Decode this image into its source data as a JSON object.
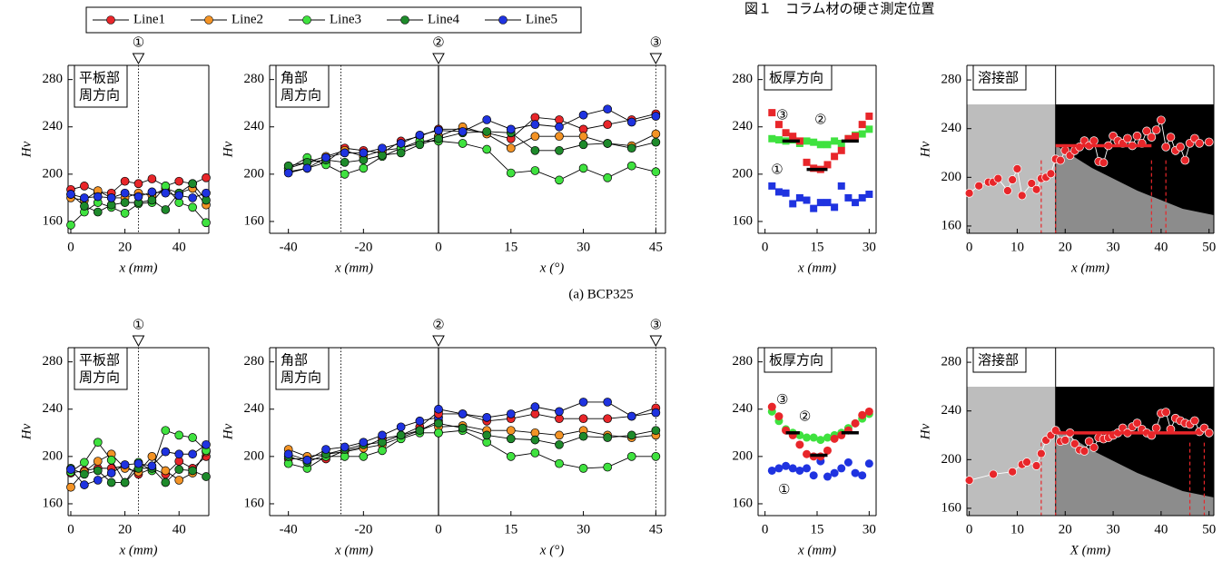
{
  "title": "図１　コラム材の硬さ測定位置",
  "caption": "(a) BCP325",
  "chart_data": [
    {
      "type": "line",
      "x": [
        0,
        5,
        10,
        15,
        20,
        25,
        30,
        35,
        40,
        45,
        50
      ],
      "xlim": [
        -1,
        51
      ],
      "ylim": [
        150,
        292
      ],
      "xticks": [
        0,
        20,
        40
      ],
      "yticks": [
        160,
        200,
        240,
        280
      ],
      "x_label": "x (mm)",
      "y_label": "Hv",
      "annotation": [
        "平板部",
        "周方向"
      ],
      "vlines": [
        {
          "value": 25,
          "label": "①",
          "style": "dotted"
        }
      ],
      "series": [
        {
          "name": "Line1",
          "color": "#e8262a",
          "values": [
            187,
            190,
            185,
            184,
            194,
            192,
            196,
            190,
            194,
            192,
            197
          ]
        },
        {
          "name": "Line2",
          "color": "#f39325",
          "values": [
            180,
            178,
            186,
            180,
            180,
            184,
            182,
            188,
            184,
            188,
            174
          ]
        },
        {
          "name": "Line3",
          "color": "#3fe23f",
          "values": [
            157,
            168,
            176,
            172,
            167,
            175,
            176,
            190,
            176,
            172,
            159
          ]
        },
        {
          "name": "Line4",
          "color": "#1e8a2b",
          "values": [
            183,
            173,
            168,
            174,
            176,
            176,
            178,
            170,
            184,
            192,
            178
          ]
        },
        {
          "name": "Line5",
          "color": "#1f33e0",
          "values": [
            183,
            180,
            181,
            180,
            184,
            181,
            185,
            184,
            182,
            180,
            184
          ]
        }
      ]
    },
    {
      "type": "line",
      "x": [
        -40,
        -35,
        -30,
        -25,
        -20,
        -15,
        -10,
        -5,
        0
      ],
      "xlim": [
        -45,
        0
      ],
      "ylim": [
        150,
        292
      ],
      "xticks": [
        -40,
        -20,
        0
      ],
      "yticks": [
        160,
        200,
        240,
        280
      ],
      "x_label": "x (mm)",
      "y_label": "Hv",
      "annotation": [
        "角部",
        "周方向"
      ],
      "vlines": [
        {
          "value": -26,
          "style": "dotted"
        },
        {
          "value": 0,
          "label": "②",
          "style": "solid"
        }
      ],
      "series": [
        {
          "color": "#e8262a",
          "values": [
            202,
            205,
            210,
            222,
            220,
            218,
            228,
            232,
            238
          ]
        },
        {
          "color": "#f39325",
          "values": [
            205,
            210,
            215,
            220,
            215,
            220,
            222,
            226,
            232
          ]
        },
        {
          "color": "#3fe23f",
          "values": [
            205,
            214,
            208,
            200,
            205,
            215,
            222,
            228,
            228
          ]
        },
        {
          "color": "#1e8a2b",
          "values": [
            207,
            210,
            212,
            210,
            212,
            216,
            218,
            225,
            230
          ]
        },
        {
          "color": "#1f33e0",
          "values": [
            201,
            205,
            214,
            218,
            218,
            222,
            226,
            233,
            237
          ]
        }
      ]
    },
    {
      "type": "line",
      "x": [
        0,
        5,
        10,
        15,
        20,
        25,
        30,
        35,
        40,
        45
      ],
      "xlim": [
        0,
        47
      ],
      "ylim": [
        150,
        292
      ],
      "xticks": [
        15,
        30,
        45
      ],
      "x_label": "x (°)",
      "vlines": [
        {
          "value": 45,
          "label": "③",
          "style": "dotted"
        }
      ],
      "series": [
        {
          "color": "#e8262a",
          "values": [
            238,
            238,
            235,
            230,
            248,
            246,
            238,
            242,
            246,
            251
          ]
        },
        {
          "color": "#f39325",
          "values": [
            232,
            240,
            234,
            222,
            232,
            232,
            232,
            226,
            224,
            234
          ]
        },
        {
          "color": "#3fe23f",
          "values": [
            228,
            226,
            221,
            201,
            203,
            195,
            205,
            197,
            207,
            202
          ]
        },
        {
          "color": "#1e8a2b",
          "values": [
            230,
            235,
            236,
            235,
            220,
            220,
            225,
            226,
            222,
            227
          ]
        },
        {
          "color": "#1f33e0",
          "values": [
            237,
            236,
            246,
            238,
            242,
            240,
            250,
            255,
            244,
            249
          ]
        }
      ]
    },
    {
      "type": "scatter",
      "marker": "square",
      "x": [
        2,
        4,
        6,
        8,
        10,
        12,
        14,
        16,
        18,
        20,
        22,
        24,
        26,
        28,
        30
      ],
      "xlim": [
        -2,
        32
      ],
      "ylim": [
        150,
        292
      ],
      "xticks": [
        0,
        15,
        30
      ],
      "yticks": [
        160,
        200,
        240,
        280
      ],
      "x_label": "x (mm)",
      "annotation": [
        "板厚方向"
      ],
      "average_color": "#000000",
      "averages": [
        {
          "x": [
            5,
            10
          ],
          "y": 228
        },
        {
          "x": [
            12,
            18
          ],
          "y": 204
        },
        {
          "x": [
            22,
            27
          ],
          "y": 228
        }
      ],
      "series": [
        {
          "name": "①",
          "color": "#1f33e0",
          "values": [
            190,
            185,
            184,
            175,
            180,
            178,
            171,
            176,
            176,
            172,
            190,
            180,
            176,
            180,
            183
          ]
        },
        {
          "name": "②",
          "color": "#3fe23f",
          "values": [
            230,
            229,
            228,
            229,
            226,
            228,
            227,
            225,
            225,
            228,
            226,
            230,
            233,
            234,
            238
          ]
        },
        {
          "name": "③",
          "color": "#e8262a",
          "values": [
            252,
            242,
            235,
            232,
            228,
            210,
            205,
            204,
            208,
            215,
            220,
            230,
            232,
            242,
            249
          ]
        }
      ]
    },
    {
      "type": "line",
      "x": [
        0,
        2,
        4,
        5,
        6,
        8,
        9,
        10,
        11,
        13,
        14,
        15,
        16,
        17,
        18,
        19,
        20,
        21,
        22,
        23,
        24,
        25,
        26,
        27,
        28,
        29,
        30,
        31,
        32,
        33,
        34,
        35,
        36,
        37,
        38,
        39,
        40,
        41,
        42,
        43,
        44,
        45,
        46,
        47,
        48,
        50
      ],
      "xlim": [
        -0.5,
        51
      ],
      "ylim": [
        154,
        292
      ],
      "xticks": [
        0,
        10,
        20,
        30,
        40,
        50
      ],
      "yticks": [
        160,
        200,
        240,
        280
      ],
      "x_label": "x (mm)",
      "y_label": "Hv",
      "annotation": [
        "溶接部"
      ],
      "line_color": "#ffffff",
      "boundary": 18,
      "dashed_lines": [
        15,
        18,
        38,
        41
      ],
      "average_color": "#e8262a",
      "averages": [
        {
          "x": [
            18,
            38
          ],
          "y": 226
        }
      ],
      "series": [
        {
          "color": "#e8262a",
          "values": [
            187,
            193,
            196,
            196,
            199,
            189,
            198,
            207,
            185,
            195,
            190,
            199,
            200,
            203,
            215,
            214,
            222,
            218,
            222,
            225,
            230,
            226,
            230,
            213,
            212,
            226,
            234,
            230,
            228,
            232,
            226,
            234,
            228,
            238,
            233,
            239,
            247,
            225,
            233,
            222,
            225,
            214,
            228,
            232,
            228,
            229
          ]
        }
      ]
    },
    {
      "type": "line",
      "x": [
        0,
        5,
        10,
        15,
        20,
        25,
        30,
        35,
        40,
        45,
        50
      ],
      "xlim": [
        -1,
        51
      ],
      "ylim": [
        150,
        292
      ],
      "xticks": [
        0,
        20,
        40
      ],
      "yticks": [
        160,
        200,
        240,
        280
      ],
      "x_label": "x (mm)",
      "y_label": "Hv",
      "annotation": [
        "平板部",
        "周方向"
      ],
      "vlines": [
        {
          "value": 25,
          "label": "①",
          "style": "dotted"
        }
      ],
      "series": [
        {
          "color": "#e8262a",
          "values": [
            186,
            188,
            190,
            190,
            192,
            185,
            190,
            185,
            196,
            190,
            200
          ]
        },
        {
          "color": "#f39325",
          "values": [
            174,
            187,
            196,
            202,
            190,
            187,
            200,
            188,
            180,
            186,
            204
          ]
        },
        {
          "color": "#3fe23f",
          "values": [
            187,
            195,
            212,
            197,
            178,
            195,
            188,
            222,
            218,
            216,
            205
          ]
        },
        {
          "color": "#1e8a2b",
          "values": [
            190,
            185,
            188,
            178,
            178,
            190,
            190,
            178,
            189,
            188,
            183
          ]
        },
        {
          "color": "#1f33e0",
          "values": [
            189,
            176,
            180,
            186,
            193,
            194,
            192,
            204,
            202,
            202,
            210
          ]
        }
      ]
    },
    {
      "type": "line",
      "x": [
        -40,
        -35,
        -30,
        -25,
        -20,
        -15,
        -10,
        -5,
        0
      ],
      "xlim": [
        -45,
        0
      ],
      "ylim": [
        150,
        292
      ],
      "xticks": [
        -40,
        -20,
        0
      ],
      "yticks": [
        160,
        200,
        240,
        280
      ],
      "x_label": "x (mm)",
      "y_label": "Hv",
      "annotation": [
        "角部",
        "周方向"
      ],
      "vlines": [
        {
          "value": -26,
          "style": "dotted"
        },
        {
          "value": 0,
          "label": "②",
          "style": "solid"
        }
      ],
      "series": [
        {
          "color": "#e8262a",
          "values": [
            198,
            198,
            198,
            205,
            208,
            215,
            218,
            225,
            238
          ]
        },
        {
          "color": "#f39325",
          "values": [
            206,
            200,
            202,
            204,
            207,
            210,
            216,
            222,
            230
          ]
        },
        {
          "color": "#3fe23f",
          "values": [
            194,
            190,
            200,
            200,
            200,
            205,
            215,
            220,
            220
          ]
        },
        {
          "color": "#1e8a2b",
          "values": [
            200,
            195,
            202,
            206,
            210,
            212,
            218,
            222,
            228
          ]
        },
        {
          "color": "#1f33e0",
          "values": [
            202,
            197,
            206,
            208,
            212,
            218,
            225,
            230,
            233
          ]
        }
      ]
    },
    {
      "type": "line",
      "x": [
        0,
        5,
        10,
        15,
        20,
        25,
        30,
        35,
        40,
        45
      ],
      "xlim": [
        0,
        47
      ],
      "ylim": [
        150,
        292
      ],
      "xticks": [
        15,
        30,
        45
      ],
      "x_label": "x (°)",
      "vlines": [
        {
          "value": 45,
          "label": "③",
          "style": "dotted"
        }
      ],
      "series": [
        {
          "color": "#e8262a",
          "values": [
            236,
            236,
            230,
            232,
            236,
            232,
            232,
            232,
            234,
            241
          ]
        },
        {
          "color": "#f39325",
          "values": [
            225,
            226,
            222,
            222,
            220,
            218,
            222,
            218,
            216,
            218
          ]
        },
        {
          "color": "#3fe23f",
          "values": [
            220,
            222,
            212,
            200,
            203,
            194,
            190,
            191,
            200,
            200
          ]
        },
        {
          "color": "#1e8a2b",
          "values": [
            228,
            224,
            218,
            215,
            214,
            210,
            217,
            216,
            218,
            222
          ]
        },
        {
          "color": "#1f33e0",
          "values": [
            240,
            236,
            233,
            236,
            242,
            238,
            246,
            246,
            234,
            237
          ]
        }
      ]
    },
    {
      "type": "scatter",
      "marker": "circle",
      "x": [
        2,
        4,
        6,
        8,
        10,
        12,
        14,
        16,
        18,
        20,
        22,
        24,
        26,
        28,
        30
      ],
      "xlim": [
        -2,
        32
      ],
      "ylim": [
        150,
        292
      ],
      "xticks": [
        0,
        15,
        30
      ],
      "yticks": [
        160,
        200,
        240,
        280
      ],
      "x_label": "x (mm)",
      "annotation": [
        "板厚方向"
      ],
      "average_color": "#000000",
      "averages": [
        {
          "x": [
            6,
            10
          ],
          "y": 220
        },
        {
          "x": [
            13,
            18
          ],
          "y": 201
        },
        {
          "x": [
            22,
            27
          ],
          "y": 220
        }
      ],
      "series": [
        {
          "name": "①",
          "color": "#1f33e0",
          "values": [
            188,
            190,
            192,
            190,
            188,
            190,
            184,
            196,
            183,
            186,
            190,
            195,
            186,
            184,
            194
          ]
        },
        {
          "name": "②",
          "color": "#3fe23f",
          "values": [
            238,
            230,
            223,
            220,
            218,
            216,
            216,
            214,
            216,
            218,
            220,
            224,
            228,
            232,
            236
          ]
        },
        {
          "name": "③",
          "color": "#e8262a",
          "values": [
            242,
            234,
            222,
            218,
            210,
            202,
            200,
            200,
            205,
            215,
            218,
            222,
            228,
            235,
            238
          ]
        }
      ]
    },
    {
      "type": "line",
      "x": [
        0,
        5,
        9,
        11,
        12,
        14,
        15,
        16,
        17,
        18,
        19,
        20,
        21,
        22,
        23,
        24,
        25,
        26,
        27,
        28,
        29,
        30,
        31,
        32,
        33,
        34,
        35,
        36,
        37,
        38,
        39,
        40,
        41,
        42,
        43,
        44,
        45,
        46,
        47,
        48,
        49,
        50
      ],
      "xlim": [
        -0.5,
        51
      ],
      "ylim": [
        154,
        292
      ],
      "xticks": [
        0,
        10,
        20,
        30,
        40,
        50
      ],
      "yticks": [
        160,
        200,
        240,
        280
      ],
      "x_label": "X (mm)",
      "y_label": "Hv",
      "annotation": [
        "溶接部"
      ],
      "line_color": "#ffffff",
      "boundary": 18,
      "dashed_lines": [
        15,
        18,
        46,
        49
      ],
      "average_color": "#e8262a",
      "averages": [
        {
          "x": [
            18,
            48
          ],
          "y": 222
        }
      ],
      "series": [
        {
          "color": "#e8262a",
          "values": [
            183,
            188,
            190,
            196,
            198,
            195,
            205,
            216,
            220,
            224,
            215,
            216,
            222,
            213,
            208,
            207,
            215,
            210,
            218,
            217,
            218,
            220,
            222,
            226,
            222,
            227,
            230,
            225,
            222,
            220,
            226,
            238,
            239,
            225,
            234,
            232,
            230,
            229,
            232,
            223,
            226,
            222
          ]
        }
      ]
    }
  ]
}
